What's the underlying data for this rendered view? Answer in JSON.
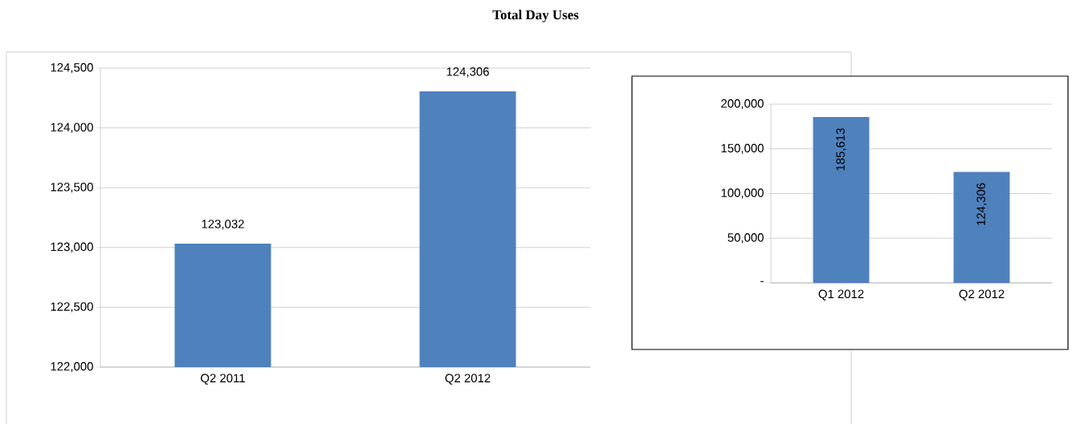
{
  "chart_data": [
    {
      "type": "bar",
      "title": "Total Day Uses",
      "categories": [
        "Q2 2011",
        "Q2 2012"
      ],
      "values": [
        123032,
        124306
      ],
      "color": "#4f81bd",
      "value_labels": [
        "123,032",
        "124,306"
      ],
      "ylim": [
        122000,
        124500
      ],
      "yticks": [
        {
          "value": 122000,
          "label": "122,000"
        },
        {
          "value": 122500,
          "label": "122,500"
        },
        {
          "value": 123000,
          "label": "123,000"
        },
        {
          "value": 123500,
          "label": "123,500"
        },
        {
          "value": 124000,
          "label": "124,000"
        },
        {
          "value": 124500,
          "label": "124,500"
        }
      ],
      "grid": "y"
    },
    {
      "type": "bar",
      "categories": [
        "Q1 2012",
        "Q2 2012"
      ],
      "values": [
        185613,
        124306
      ],
      "color": "#4f81bd",
      "value_labels": [
        "185,613",
        "124,306"
      ],
      "ylim": [
        0,
        200000
      ],
      "yticks": [
        {
          "value": 0,
          "label": "-"
        },
        {
          "value": 50000,
          "label": "50,000"
        },
        {
          "value": 100000,
          "label": "100,000"
        },
        {
          "value": 150000,
          "label": "150,000"
        },
        {
          "value": 200000,
          "label": "200,000"
        }
      ],
      "grid": "y"
    }
  ]
}
